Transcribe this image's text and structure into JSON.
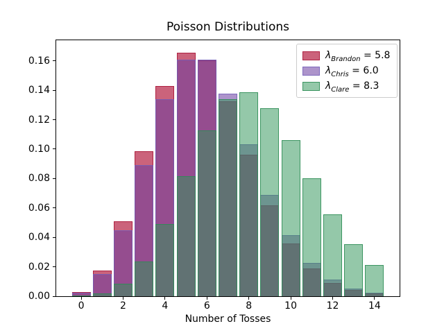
{
  "chart_data": {
    "type": "bar",
    "title": "Poisson Distributions",
    "xlabel": "Number of Tosses",
    "ylabel": "",
    "grid": false,
    "legend_position": "upper right",
    "bar_width": 0.9,
    "xlim": [
      -1.195,
      15.195
    ],
    "ylim": [
      0,
      0.174
    ],
    "x": [
      0,
      1,
      2,
      3,
      4,
      5,
      6,
      7,
      8,
      9,
      10,
      11,
      12,
      13,
      14
    ],
    "xticks": [
      0,
      2,
      4,
      6,
      8,
      10,
      12,
      14
    ],
    "yticks": [
      "0.00",
      "0.02",
      "0.04",
      "0.06",
      "0.08",
      "0.10",
      "0.12",
      "0.14",
      "0.16"
    ],
    "series": [
      {
        "name": "Brandon",
        "lambda": "5.8",
        "fill": "rgba(190,60,90,0.8)",
        "edge": "rgba(172,30,62,0.95)",
        "values": [
          0.003,
          0.0176,
          0.0509,
          0.0985,
          0.1428,
          0.1656,
          0.1601,
          0.1326,
          0.0962,
          0.062,
          0.036,
          0.019,
          0.0092,
          0.0041,
          0.0017
        ]
      },
      {
        "name": "Chris",
        "lambda": "6.0",
        "fill": "rgba(105,60,160,0.55)",
        "edge": "rgba(115,95,185,0.8)",
        "values": [
          0.0025,
          0.0149,
          0.0446,
          0.0892,
          0.1339,
          0.1606,
          0.1606,
          0.1377,
          0.1033,
          0.0688,
          0.0413,
          0.0225,
          0.0113,
          0.0052,
          0.0022
        ]
      },
      {
        "name": "Clare",
        "lambda": "8.3",
        "fill": "rgba(50,150,90,0.52)",
        "edge": "rgba(45,140,85,0.85)",
        "values": [
          0.0002,
          0.0021,
          0.0086,
          0.0237,
          0.0491,
          0.0816,
          0.1128,
          0.1338,
          0.1388,
          0.128,
          0.1063,
          0.0802,
          0.0555,
          0.0354,
          0.021
        ]
      }
    ],
    "legend_equals_sign": " = "
  }
}
